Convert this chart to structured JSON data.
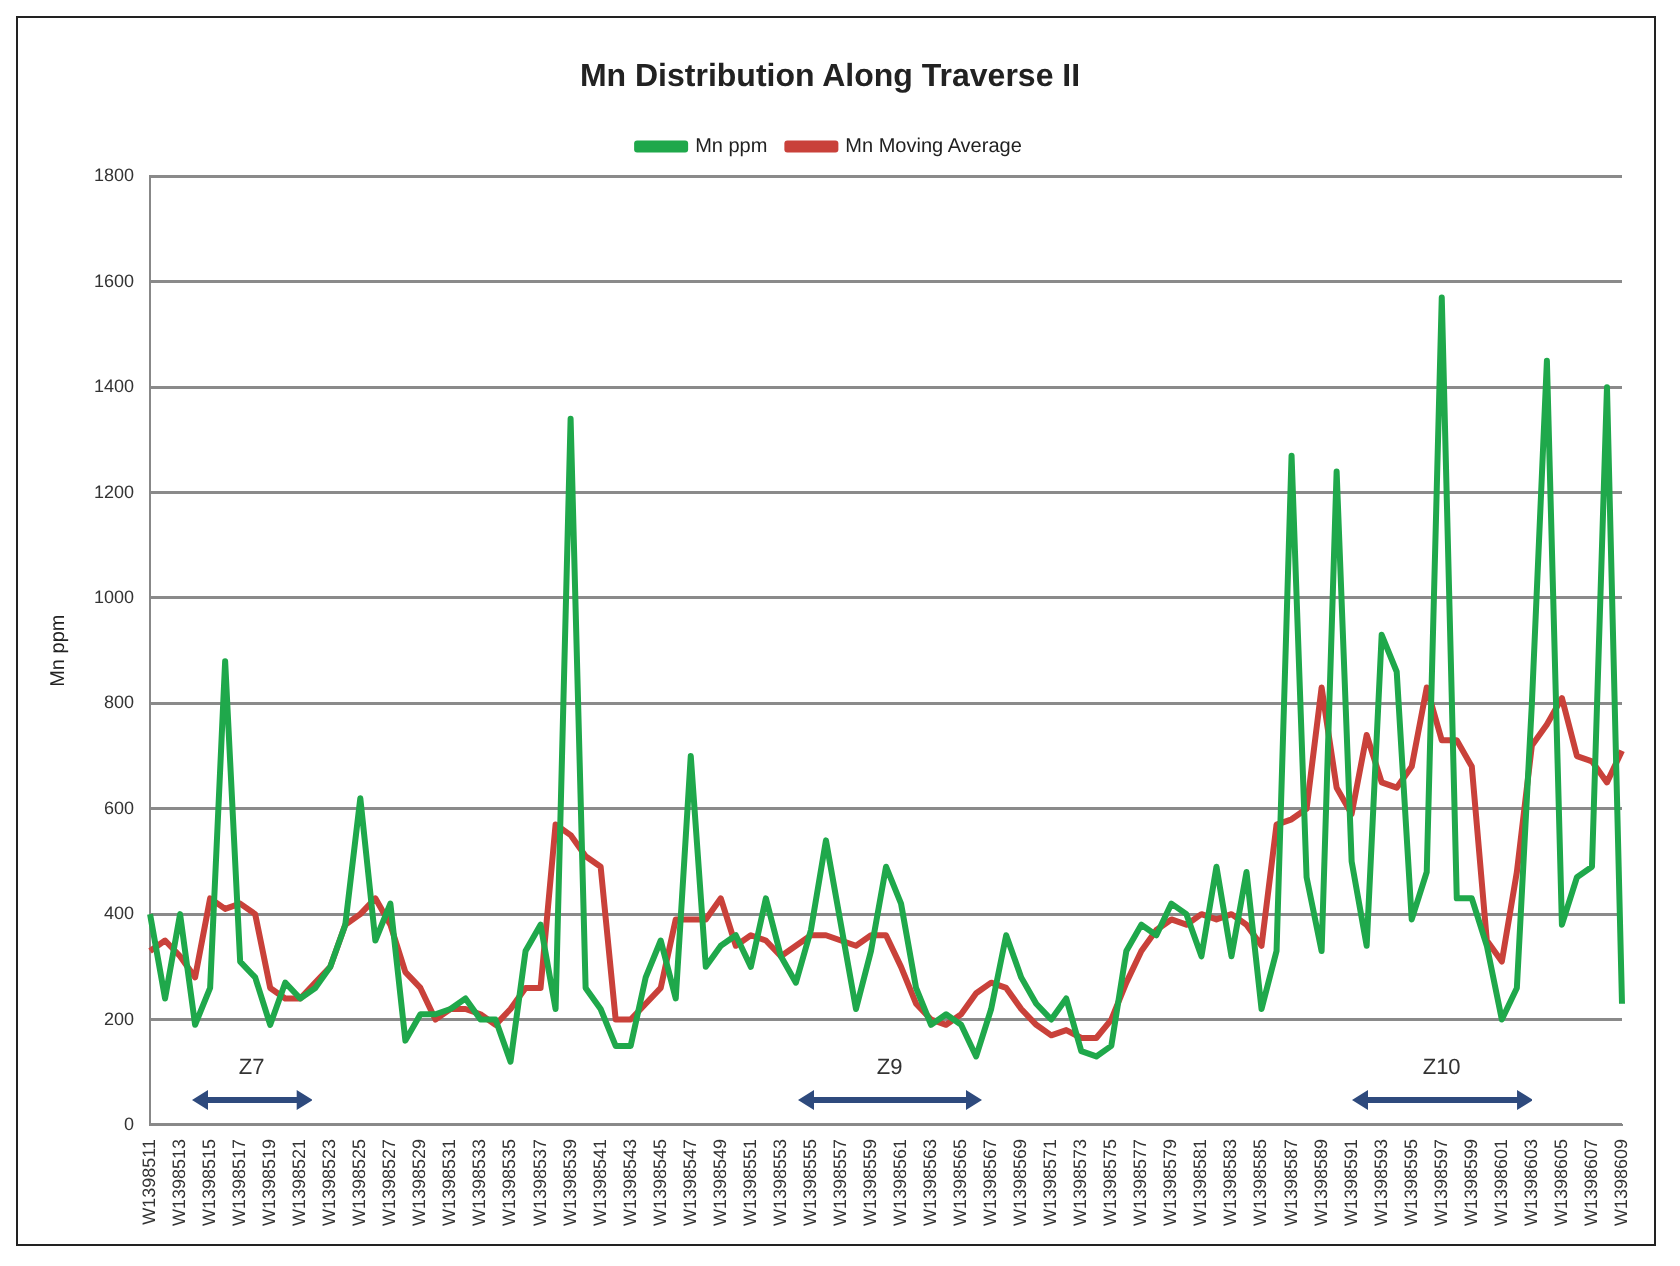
{
  "chart_data": {
    "type": "line",
    "title": "Mn Distribution Along Traverse II",
    "ylabel": "Mn ppm",
    "categories": [
      "W1398511",
      null,
      "W1398513",
      null,
      "W1398515",
      null,
      "W1398517",
      null,
      "W1398519",
      null,
      "W1398521",
      null,
      "W1398523",
      null,
      "W1398525",
      null,
      "W1398527",
      null,
      "W1398529",
      null,
      "W1398531",
      null,
      "W1398533",
      null,
      "W1398535",
      null,
      "W1398537",
      null,
      "W1398539",
      null,
      "W1398541",
      null,
      "W1398543",
      null,
      "W1398545",
      null,
      "W1398547",
      null,
      "W1398549",
      null,
      "W1398551",
      null,
      "W1398553",
      null,
      "W1398555",
      null,
      "W1398557",
      null,
      "W1398559",
      null,
      "W1398561",
      null,
      "W1398563",
      null,
      "W1398565",
      null,
      "W1398567",
      null,
      "W1398569",
      null,
      "W1398571",
      null,
      "W1398573",
      null,
      "W1398575",
      null,
      "W1398577",
      null,
      "W1398579",
      null,
      "W1398581",
      null,
      "W1398583",
      null,
      "W1398585",
      null,
      "W1398587",
      null,
      "W1398589",
      null,
      "W1398591",
      null,
      "W1398593",
      null,
      "W1398595",
      null,
      "W1398597",
      null,
      "W1398599",
      null,
      "W1398601",
      null,
      "W1398603",
      null,
      "W1398605",
      null,
      "W1398607",
      null,
      "W1398609"
    ],
    "series": [
      {
        "name": "Mn ppm",
        "color": "#1fa84b",
        "values": [
          400,
          240,
          400,
          190,
          260,
          880,
          310,
          280,
          190,
          270,
          240,
          260,
          300,
          380,
          620,
          350,
          420,
          160,
          210,
          210,
          220,
          240,
          200,
          200,
          120,
          330,
          380,
          220,
          1340,
          260,
          220,
          150,
          150,
          280,
          350,
          240,
          700,
          300,
          340,
          360,
          300,
          430,
          320,
          270,
          370,
          540,
          380,
          220,
          330,
          490,
          420,
          260,
          190,
          210,
          190,
          130,
          220,
          360,
          280,
          230,
          200,
          240,
          140,
          130,
          150,
          330,
          380,
          360,
          420,
          400,
          320,
          490,
          320,
          480,
          220,
          330,
          1270,
          470,
          330,
          1240,
          500,
          340,
          930,
          860,
          390,
          480,
          1570,
          430,
          430,
          340,
          200,
          260,
          800,
          1450,
          380,
          470,
          490,
          1400,
          230
        ]
      },
      {
        "name": "Mn Moving Average",
        "color": "#c9413a",
        "values": [
          330,
          350,
          320,
          280,
          430,
          410,
          420,
          400,
          260,
          240,
          240,
          270,
          300,
          380,
          400,
          430,
          380,
          290,
          260,
          200,
          220,
          220,
          210,
          190,
          220,
          260,
          260,
          570,
          550,
          510,
          490,
          200,
          200,
          230,
          260,
          390,
          390,
          390,
          430,
          340,
          360,
          350,
          320,
          340,
          360,
          360,
          350,
          340,
          360,
          360,
          300,
          230,
          200,
          190,
          210,
          250,
          270,
          260,
          220,
          190,
          170,
          180,
          165,
          165,
          200,
          270,
          330,
          370,
          390,
          380,
          400,
          390,
          400,
          380,
          340,
          570,
          580,
          600,
          830,
          640,
          590,
          740,
          650,
          640,
          680,
          830,
          730,
          730,
          680,
          350,
          310,
          480,
          720,
          760,
          810,
          700,
          690,
          650,
          710
        ]
      }
    ],
    "ylim": [
      0,
      1800
    ],
    "yticks": [
      0,
      200,
      400,
      600,
      800,
      1000,
      1200,
      1400,
      1600,
      1800
    ],
    "grid": "y",
    "legend": "top",
    "marker": "none",
    "line_style": "solid",
    "annotations": [
      "Z7",
      "Z9",
      "Z10"
    ]
  }
}
